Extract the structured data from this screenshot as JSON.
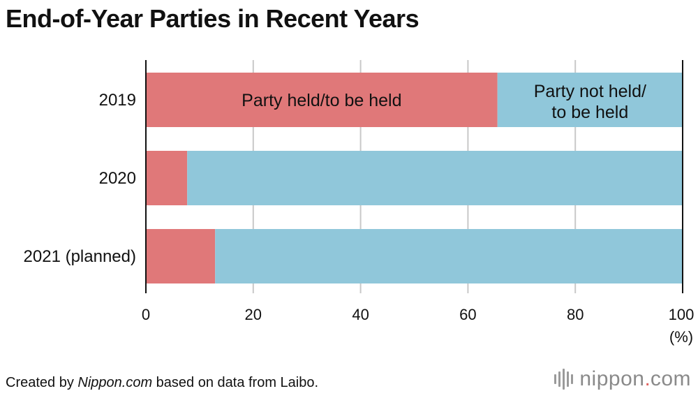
{
  "title": "End-of-Year Parties in Recent Years",
  "source_pre": "Created by ",
  "source_site": "Nippon.com",
  "source_post": " based on data from Laibo.",
  "logo": {
    "name": "nippon",
    "dot": ".",
    "tld": "com"
  },
  "colors": {
    "held": "#e07879",
    "not_held": "#90c7da",
    "grid": "#c8c8c8",
    "axis": "#111111"
  },
  "chart_data": {
    "type": "bar",
    "orientation": "horizontal",
    "stacked": true,
    "title": "End-of-Year Parties in Recent Years",
    "categories": [
      "2019",
      "2020",
      "2021 (planned)"
    ],
    "series": [
      {
        "name": "Party held/to be held",
        "values": [
          65.5,
          7.7,
          12.9
        ]
      },
      {
        "name": "Party not held/ to be held",
        "values": [
          34.5,
          92.3,
          87.1
        ]
      }
    ],
    "xlim": [
      0,
      100
    ],
    "xticks": [
      0,
      20,
      40,
      60,
      80,
      100
    ],
    "xunit": "(%)",
    "grid": true,
    "in_bar_labels": {
      "held": [
        "Party held/to be held"
      ],
      "not_held": [
        "Party not held/",
        "to be held"
      ]
    }
  }
}
